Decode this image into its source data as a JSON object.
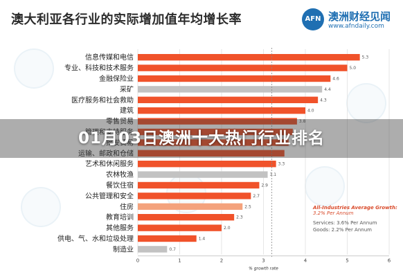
{
  "logo": {
    "mark": "AFN",
    "name": "澳洲财经见闻",
    "url": "www.afndaily.com"
  },
  "banner": {
    "text": "01月03日澳洲十大热门行业排名"
  },
  "colors": {
    "orange": "#f0522a",
    "grey": "#c2c2c2",
    "light": "#f4a27c"
  },
  "chart_data": {
    "type": "bar",
    "orientation": "horizontal",
    "title": "澳大利亚各行业的实际增加值年均增长率",
    "xlabel": "% growth rate",
    "xlim": [
      0,
      6
    ],
    "xticks": [
      0,
      1,
      2,
      3,
      4,
      5,
      6
    ],
    "reference_line": 3.2,
    "grid": true,
    "categories": [
      "信息传媒和电信",
      "专业、科技和技术服务",
      "金融保险业",
      "采矿",
      "医疗服务和社会救助",
      "建筑",
      "零售贸易",
      "管理和支持服务",
      "批发贸易",
      "运输、邮政和仓储",
      "艺术和休闲服务",
      "农林牧渔",
      "餐饮住宿",
      "公共管理和安全",
      "住房",
      "教育培训",
      "其他服务",
      "供电、气、水和垃圾处理",
      "制造业"
    ],
    "values": [
      5.3,
      5.0,
      4.6,
      4.4,
      4.3,
      4.0,
      3.8,
      3.7,
      3.6,
      3.5,
      3.3,
      3.1,
      2.9,
      2.7,
      2.5,
      2.3,
      2.0,
      1.4,
      0.7
    ],
    "value_labels": [
      "5.3",
      "5.0",
      "4.6",
      "4.4",
      "4.3",
      "4.0",
      "3.8",
      "",
      "",
      "",
      "3.3",
      "3.1",
      "2.9",
      "2.7",
      "2.5",
      "2.3",
      "2.0",
      "1.4",
      "0.7"
    ],
    "bar_colors": [
      "orange",
      "orange",
      "orange",
      "grey",
      "orange",
      "orange",
      "orange",
      "orange",
      "orange",
      "orange",
      "orange",
      "grey",
      "orange",
      "orange",
      "light",
      "orange",
      "orange",
      "orange",
      "grey"
    ],
    "annotation": {
      "title": "All-Industries Average Growth:",
      "subtitle": "3.2% Per Annum",
      "services": "Services: 3.6% Per Annum",
      "goods": "Goods: 2.2% Per Annum"
    }
  }
}
